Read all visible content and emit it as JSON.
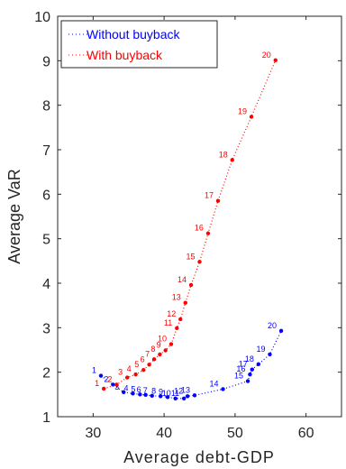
{
  "chart_data": {
    "type": "line",
    "xlabel": "Average debt-GDP",
    "ylabel": "Average VaR",
    "xlim": [
      25,
      65
    ],
    "ylim": [
      1,
      10
    ],
    "xticks": [
      30,
      40,
      50,
      60
    ],
    "yticks": [
      1,
      2,
      3,
      4,
      5,
      6,
      7,
      8,
      9,
      10
    ],
    "grid": false,
    "legend_position": "top-left",
    "series": [
      {
        "name": "Without buyback",
        "color": "#0000ff",
        "labels": [
          "1",
          "2",
          "3",
          "4",
          "5",
          "6",
          "7",
          "8",
          "9",
          "10",
          "11",
          "12",
          "13",
          "14",
          "15",
          "16",
          "17",
          "18",
          "19",
          "20"
        ],
        "x": [
          31.1,
          32.8,
          34.3,
          35.6,
          36.6,
          37.4,
          38.3,
          39.5,
          40.5,
          41.6,
          42.8,
          43.3,
          44.3,
          48.3,
          51.8,
          52.1,
          52.4,
          53.3,
          54.9,
          56.5
        ],
        "y": [
          1.92,
          1.72,
          1.55,
          1.52,
          1.5,
          1.49,
          1.47,
          1.46,
          1.44,
          1.41,
          1.41,
          1.46,
          1.48,
          1.62,
          1.8,
          1.95,
          2.06,
          2.18,
          2.4,
          2.93
        ],
        "labels_shown": [
          {
            "text": "1",
            "x": 31.1,
            "y": 1.92
          },
          {
            "text": "2",
            "x": 32.8,
            "y": 1.72
          },
          {
            "text": "3",
            "x": 34.3,
            "y": 1.55
          },
          {
            "text": "4",
            "x": 35.6,
            "y": 1.52
          },
          {
            "text": "5",
            "x": 36.6,
            "y": 1.5
          },
          {
            "text": "6",
            "x": 37.4,
            "y": 1.49
          },
          {
            "text": "7",
            "x": 38.3,
            "y": 1.47
          },
          {
            "text": "8",
            "x": 39.5,
            "y": 1.46
          },
          {
            "text": "9",
            "x": 40.5,
            "y": 1.44
          },
          {
            "text": "10",
            "x": 41.6,
            "y": 1.41
          },
          {
            "text": "11",
            "x": 42.8,
            "y": 1.41
          },
          {
            "text": "12",
            "x": 43.3,
            "y": 1.46
          },
          {
            "text": "13",
            "x": 44.3,
            "y": 1.48
          },
          {
            "text": "14",
            "x": 48.3,
            "y": 1.62
          },
          {
            "text": "15",
            "x": 51.8,
            "y": 1.8
          },
          {
            "text": "16",
            "x": 52.1,
            "y": 1.95
          },
          {
            "text": "17",
            "x": 52.4,
            "y": 2.06
          },
          {
            "text": "18",
            "x": 53.3,
            "y": 2.18
          },
          {
            "text": "19",
            "x": 54.9,
            "y": 2.4
          },
          {
            "text": "20",
            "x": 56.5,
            "y": 2.93
          }
        ]
      },
      {
        "name": "With buyback",
        "color": "#ff0000",
        "labels": [
          "1",
          "2",
          "3",
          "4",
          "5",
          "6",
          "7",
          "8",
          "9",
          "10",
          "11",
          "12",
          "13",
          "14",
          "15",
          "16",
          "17",
          "18",
          "19",
          "20"
        ],
        "x": [
          31.5,
          33.3,
          34.8,
          36.0,
          37.1,
          37.9,
          38.6,
          39.4,
          40.2,
          41.0,
          41.8,
          42.3,
          43.0,
          43.8,
          45.0,
          46.2,
          47.6,
          49.6,
          52.3,
          55.7
        ],
        "y": [
          1.63,
          1.72,
          1.88,
          1.95,
          2.05,
          2.17,
          2.29,
          2.4,
          2.49,
          2.63,
          2.99,
          3.19,
          3.56,
          3.96,
          4.48,
          5.12,
          5.85,
          6.77,
          7.74,
          9.01
        ]
      }
    ]
  }
}
